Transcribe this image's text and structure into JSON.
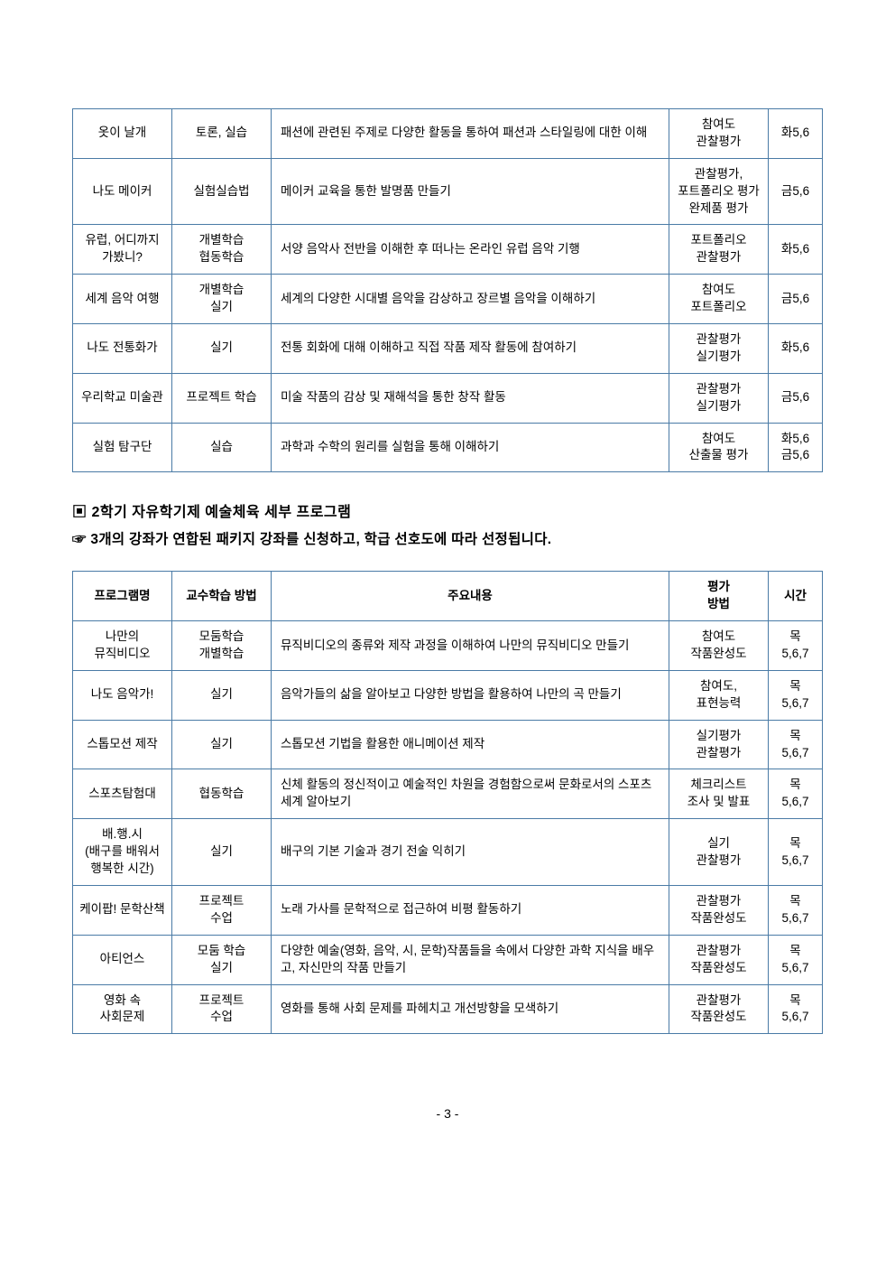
{
  "table1": {
    "rows": [
      {
        "program": "옷이 날개",
        "method": "토론, 실습",
        "content": "패션에 관련된 주제로 다양한 활동을 통하여 패션과 스타일링에 대한 이해",
        "eval": "참여도\n관찰평가",
        "time": "화5,6"
      },
      {
        "program": "나도 메이커",
        "method": "실험실습법",
        "content": "메이커 교육을 통한 발명품 만들기",
        "eval": "관찰평가,\n포트폴리오 평가\n완제품 평가",
        "time": "금5,6"
      },
      {
        "program": "유럽, 어디까지\n가봤니?",
        "method": "개별학습\n협동학습",
        "content": "서양 음악사 전반을 이해한 후 떠나는 온라인 유럽 음악 기행",
        "eval": "포트폴리오\n관찰평가",
        "time": "화5,6"
      },
      {
        "program": "세계 음악 여행",
        "method": "개별학습\n실기",
        "content": "세계의 다양한 시대별 음악을 감상하고 장르별 음악을 이해하기",
        "eval": "참여도\n포트폴리오",
        "time": "금5,6"
      },
      {
        "program": "나도 전통화가",
        "method": "실기",
        "content": "전통 회화에 대해 이해하고 직접 작품 제작 활동에 참여하기",
        "eval": "관찰평가\n실기평가",
        "time": "화5,6"
      },
      {
        "program": "우리학교 미술관",
        "method": "프로젝트 학습",
        "content": "미술 작품의 감상 및 재해석을 통한 창작 활동",
        "eval": "관찰평가\n실기평가",
        "time": "금5,6"
      },
      {
        "program": "실험 탐구단",
        "method": "실습",
        "content": "과학과 수학의 원리를 실험을 통해 이해하기",
        "eval": "참여도\n산출물 평가",
        "time": "화5,6\n금5,6"
      }
    ]
  },
  "section": {
    "heading": "▣ 2학기 자유학기제 예술체육 세부 프로그램",
    "note": "☞ 3개의 강좌가 연합된 패키지 강좌를 신청하고, 학급 선호도에 따라 선정됩니다."
  },
  "table2": {
    "headers": {
      "program": "프로그램명",
      "method": "교수학습 방법",
      "content": "주요내용",
      "eval": "평가\n방법",
      "time": "시간"
    },
    "rows": [
      {
        "program": "나만의\n뮤직비디오",
        "method": "모둠학습\n개별학습",
        "content": "뮤직비디오의 종류와 제작 과정을 이해하여 나만의 뮤직비디오 만들기",
        "eval": "참여도\n작품완성도",
        "time": "목\n5,6,7"
      },
      {
        "program": "나도 음악가!",
        "method": "실기",
        "content": "음악가들의 삶을 알아보고 다양한 방법을 활용하여 나만의 곡 만들기",
        "eval": "참여도,\n표현능력",
        "time": "목\n5,6,7"
      },
      {
        "program": "스톱모션 제작",
        "method": "실기",
        "content": "스톱모션 기법을 활용한 애니메이션 제작",
        "eval": "실기평가\n관찰평가",
        "time": "목\n5,6,7"
      },
      {
        "program": "스포츠탐험대",
        "method": "협동학습",
        "content": "신체 활동의 정신적이고 예술적인 차원을 경험함으로써 문화로서의 스포츠 세계 알아보기",
        "eval": "체크리스트\n조사 및 발표",
        "time": "목\n5,6,7"
      },
      {
        "program": "배.행.시\n(배구를 배워서\n행복한 시간)",
        "method": "실기",
        "content": "배구의 기본 기술과 경기 전술 익히기",
        "eval": "실기\n관찰평가",
        "time": "목\n5,6,7"
      },
      {
        "program": "케이팝! 문학산책",
        "method": "프로젝트\n수업",
        "content": "노래 가사를 문학적으로 접근하여 비평 활동하기",
        "eval": "관찰평가\n작품완성도",
        "time": "목\n5,6,7"
      },
      {
        "program": "아티언스",
        "method": "모둠 학습\n실기",
        "content": "다양한 예술(영화, 음악, 시, 문학)작품들을 속에서 다양한 과학 지식을 배우고, 자신만의 작품 만들기",
        "eval": "관찰평가\n작품완성도",
        "time": "목\n5,6,7"
      },
      {
        "program": "영화 속\n사회문제",
        "method": "프로젝트\n수업",
        "content": "영화를 통해 사회 문제를 파헤치고 개선방향을 모색하기",
        "eval": "관찰평가\n작품완성도",
        "time": "목\n5,6,7"
      }
    ]
  },
  "pageNumber": "- 3 -"
}
